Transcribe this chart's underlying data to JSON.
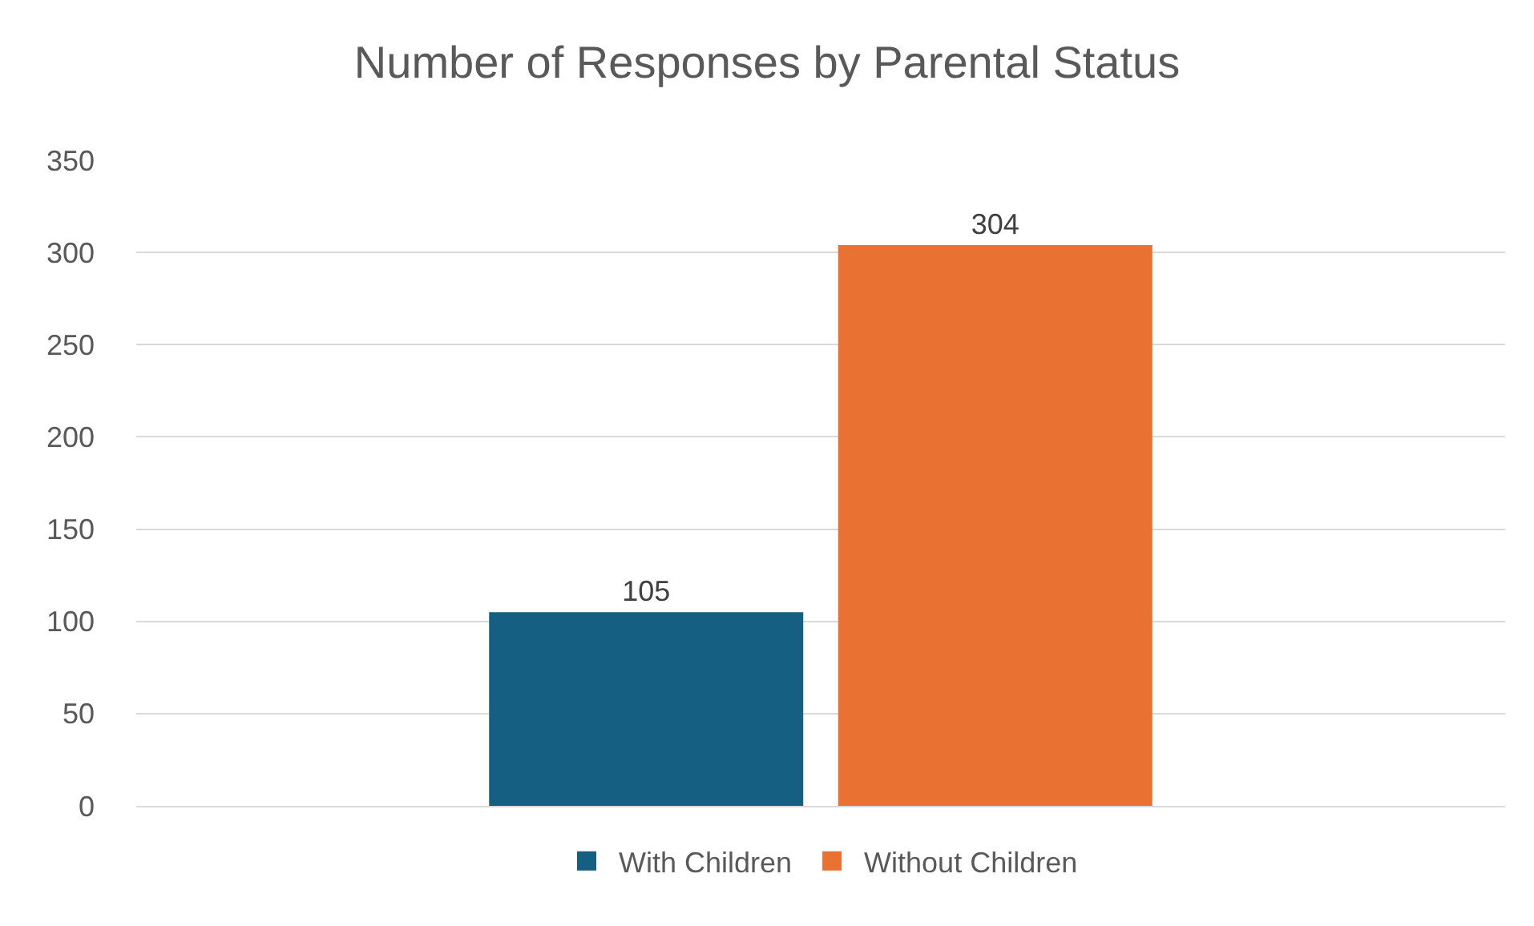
{
  "chart_data": {
    "type": "bar",
    "title": "Number of Responses by Parental Status",
    "categories": [
      null
    ],
    "series": [
      {
        "name": "With Children",
        "color": "#156082",
        "values": [
          105
        ]
      },
      {
        "name": "Without Children",
        "color": "#e97132",
        "values": [
          304
        ]
      }
    ],
    "ylim": [
      0,
      350
    ],
    "yticks": [
      0,
      50,
      100,
      150,
      200,
      250,
      300,
      350
    ],
    "grid": "y",
    "legend": "bottom",
    "data_labels": true
  }
}
